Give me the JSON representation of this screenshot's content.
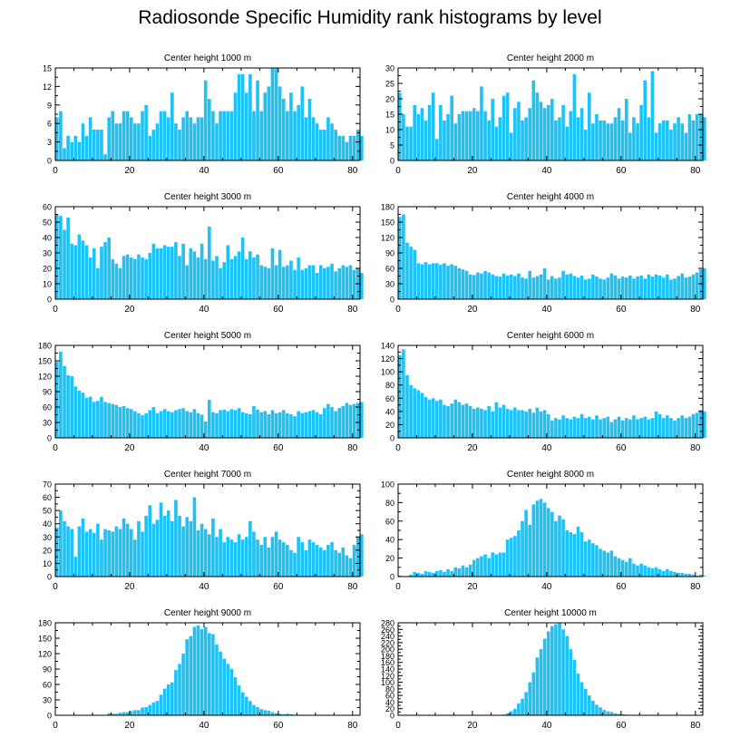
{
  "figure": {
    "title": "Radiosonde Specific Humidity rank histograms by level",
    "bar_color": "#1ec2f5",
    "axis_color": "#000000"
  },
  "chart_data": [
    {
      "type": "bar",
      "title": "Center height 1000 m",
      "xlim": [
        0,
        82
      ],
      "xticks": [
        0,
        20,
        40,
        60,
        80
      ],
      "ylim": [
        0,
        15
      ],
      "yticks": [
        0,
        3,
        6,
        9,
        12,
        15
      ],
      "values": [
        7,
        8,
        2,
        4,
        3,
        4,
        3,
        6,
        4,
        7,
        5,
        5,
        5,
        1,
        7,
        8,
        6,
        6,
        8,
        8,
        7,
        6,
        6,
        8,
        9,
        4,
        5,
        6,
        8,
        8,
        7,
        11,
        6,
        5,
        7,
        8,
        7,
        6,
        7,
        7,
        13,
        10,
        8,
        6,
        8,
        8,
        8,
        8,
        11,
        14,
        14,
        11,
        14,
        8,
        13,
        8,
        11,
        12,
        15,
        15,
        12,
        10,
        8,
        11,
        8,
        9,
        12,
        7,
        10,
        7,
        6,
        5,
        5,
        7,
        6,
        5,
        4,
        4,
        3,
        4,
        4,
        5,
        4
      ]
    },
    {
      "type": "bar",
      "title": "Center height 2000 m",
      "xlim": [
        0,
        82
      ],
      "xticks": [
        0,
        20,
        40,
        60,
        80
      ],
      "ylim": [
        0,
        30
      ],
      "yticks": [
        0,
        5,
        10,
        15,
        20,
        25,
        30
      ],
      "values": [
        22,
        15,
        11,
        11,
        18,
        15,
        17,
        13,
        18,
        22,
        7,
        18,
        13,
        15,
        21,
        12,
        15,
        16,
        16,
        16,
        17,
        16,
        24,
        16,
        13,
        20,
        11,
        14,
        21,
        22,
        9,
        17,
        19,
        13,
        14,
        17,
        26,
        22,
        19,
        17,
        18,
        20,
        13,
        14,
        18,
        11,
        16,
        28,
        14,
        17,
        10,
        22,
        12,
        15,
        13,
        13,
        12,
        12,
        14,
        17,
        13,
        20,
        9,
        14,
        12,
        18,
        26,
        14,
        29,
        9,
        12,
        13,
        13,
        10,
        12,
        14,
        12,
        9,
        15,
        13,
        15,
        15,
        14
      ]
    },
    {
      "type": "bar",
      "title": "Center height 3000 m",
      "xlim": [
        0,
        82
      ],
      "xticks": [
        0,
        20,
        40,
        60,
        80
      ],
      "ylim": [
        0,
        60
      ],
      "yticks": [
        0,
        10,
        20,
        30,
        40,
        50,
        60
      ],
      "values": [
        55,
        54,
        45,
        53,
        36,
        35,
        42,
        38,
        35,
        27,
        33,
        20,
        34,
        37,
        40,
        26,
        23,
        20,
        28,
        29,
        27,
        26,
        29,
        27,
        26,
        30,
        36,
        33,
        33,
        35,
        34,
        34,
        37,
        28,
        36,
        22,
        33,
        31,
        27,
        36,
        26,
        47,
        25,
        28,
        20,
        24,
        35,
        26,
        28,
        31,
        40,
        26,
        31,
        27,
        29,
        22,
        21,
        20,
        33,
        22,
        32,
        21,
        22,
        25,
        19,
        27,
        19,
        20,
        22,
        22,
        17,
        22,
        20,
        21,
        23,
        18,
        20,
        22,
        21,
        22,
        19,
        20,
        17
      ]
    },
    {
      "type": "bar",
      "title": "Center height 4000 m",
      "xlim": [
        0,
        82
      ],
      "xticks": [
        0,
        20,
        40,
        60,
        80
      ],
      "ylim": [
        0,
        180
      ],
      "yticks": [
        0,
        30,
        60,
        90,
        120,
        150,
        180
      ],
      "values": [
        160,
        165,
        110,
        102,
        96,
        70,
        68,
        72,
        68,
        70,
        70,
        67,
        70,
        65,
        68,
        65,
        60,
        58,
        55,
        48,
        47,
        52,
        50,
        55,
        52,
        48,
        45,
        44,
        50,
        46,
        48,
        45,
        50,
        42,
        40,
        55,
        42,
        45,
        48,
        60,
        38,
        45,
        40,
        42,
        55,
        48,
        50,
        45,
        42,
        46,
        38,
        40,
        48,
        44,
        40,
        38,
        42,
        50,
        46,
        40,
        44,
        42,
        46,
        40,
        44,
        46,
        40,
        48,
        44,
        48,
        46,
        42,
        48,
        38,
        40,
        45,
        50,
        42,
        44,
        48,
        52,
        58,
        60
      ]
    },
    {
      "type": "bar",
      "title": "Center height 5000 m",
      "xlim": [
        0,
        82
      ],
      "xticks": [
        0,
        20,
        40,
        60,
        80
      ],
      "ylim": [
        0,
        180
      ],
      "yticks": [
        0,
        30,
        60,
        90,
        120,
        150,
        180
      ],
      "values": [
        148,
        168,
        140,
        122,
        120,
        100,
        92,
        88,
        78,
        80,
        70,
        72,
        80,
        70,
        68,
        66,
        64,
        60,
        62,
        58,
        56,
        52,
        48,
        44,
        48,
        54,
        60,
        48,
        52,
        56,
        52,
        50,
        54,
        56,
        58,
        52,
        50,
        56,
        48,
        45,
        32,
        74,
        50,
        48,
        54,
        55,
        52,
        56,
        54,
        58,
        50,
        48,
        46,
        62,
        55,
        50,
        52,
        46,
        54,
        48,
        50,
        54,
        48,
        46,
        42,
        52,
        48,
        50,
        52,
        54,
        50,
        46,
        58,
        66,
        60,
        52,
        58,
        62,
        68,
        64,
        66,
        68,
        70
      ]
    },
    {
      "type": "bar",
      "title": "Center height 6000 m",
      "xlim": [
        0,
        82
      ],
      "xticks": [
        0,
        20,
        40,
        60,
        80
      ],
      "ylim": [
        0,
        140
      ],
      "yticks": [
        0,
        20,
        40,
        60,
        80,
        100,
        120,
        140
      ],
      "values": [
        125,
        134,
        95,
        80,
        75,
        72,
        68,
        62,
        58,
        60,
        56,
        58,
        50,
        48,
        52,
        58,
        54,
        50,
        52,
        48,
        44,
        46,
        44,
        42,
        48,
        40,
        54,
        46,
        50,
        44,
        42,
        46,
        42,
        42,
        40,
        44,
        38,
        46,
        40,
        42,
        36,
        26,
        30,
        28,
        34,
        30,
        28,
        32,
        30,
        36,
        30,
        32,
        28,
        34,
        28,
        30,
        32,
        24,
        28,
        32,
        26,
        30,
        28,
        34,
        28,
        30,
        32,
        28,
        30,
        40,
        36,
        30,
        34,
        30,
        26,
        30,
        34,
        30,
        32,
        36,
        38,
        42,
        40
      ]
    },
    {
      "type": "bar",
      "title": "Center height 7000 m",
      "xlim": [
        0,
        82
      ],
      "xticks": [
        0,
        20,
        40,
        60,
        80
      ],
      "ylim": [
        0,
        70
      ],
      "yticks": [
        0,
        10,
        20,
        30,
        40,
        50,
        60,
        70
      ],
      "values": [
        37,
        50,
        42,
        38,
        36,
        15,
        38,
        44,
        34,
        36,
        33,
        40,
        28,
        36,
        35,
        34,
        38,
        36,
        44,
        40,
        36,
        28,
        42,
        34,
        46,
        54,
        40,
        43,
        56,
        46,
        50,
        42,
        58,
        46,
        38,
        45,
        42,
        60,
        35,
        40,
        36,
        32,
        44,
        30,
        36,
        26,
        30,
        28,
        26,
        32,
        28,
        30,
        42,
        34,
        28,
        24,
        30,
        22,
        30,
        34,
        28,
        26,
        24,
        20,
        18,
        30,
        26,
        20,
        28,
        26,
        24,
        22,
        20,
        24,
        26,
        20,
        18,
        22,
        16,
        14,
        24,
        30,
        32
      ]
    },
    {
      "type": "bar",
      "title": "Center height 8000 m",
      "xlim": [
        0,
        82
      ],
      "xticks": [
        0,
        20,
        40,
        60,
        80
      ],
      "ylim": [
        0,
        100
      ],
      "yticks": [
        0,
        20,
        40,
        60,
        80,
        100
      ],
      "values": [
        1,
        0,
        0,
        2,
        5,
        4,
        3,
        6,
        5,
        4,
        6,
        7,
        5,
        8,
        6,
        10,
        9,
        12,
        10,
        13,
        18,
        20,
        22,
        24,
        20,
        26,
        24,
        26,
        26,
        40,
        42,
        44,
        50,
        60,
        72,
        56,
        78,
        82,
        84,
        80,
        74,
        70,
        60,
        66,
        62,
        50,
        48,
        46,
        54,
        48,
        38,
        40,
        36,
        34,
        30,
        28,
        26,
        28,
        22,
        20,
        18,
        16,
        20,
        14,
        12,
        14,
        12,
        10,
        9,
        10,
        8,
        6,
        8,
        6,
        5,
        4,
        4,
        3,
        3,
        2,
        1,
        2,
        1
      ]
    },
    {
      "type": "bar",
      "title": "Center height 9000 m",
      "xlim": [
        0,
        82
      ],
      "xticks": [
        0,
        20,
        40,
        60,
        80
      ],
      "ylim": [
        0,
        180
      ],
      "yticks": [
        0,
        30,
        60,
        90,
        120,
        150,
        180
      ],
      "values": [
        0,
        0,
        0,
        0,
        0,
        0,
        0,
        0,
        0,
        0,
        0,
        0,
        0,
        0,
        4,
        3,
        3,
        5,
        6,
        6,
        8,
        10,
        10,
        15,
        16,
        20,
        25,
        28,
        40,
        52,
        60,
        64,
        88,
        100,
        120,
        148,
        154,
        172,
        175,
        168,
        172,
        160,
        158,
        138,
        124,
        110,
        100,
        90,
        74,
        58,
        45,
        36,
        28,
        20,
        16,
        12,
        10,
        9,
        6,
        4,
        3,
        2,
        3,
        2,
        1,
        1,
        1,
        1,
        1,
        0,
        1,
        0,
        1,
        0,
        0,
        0,
        0,
        0,
        0,
        0,
        0,
        0,
        0
      ]
    },
    {
      "type": "bar",
      "title": "Center height 10000 m",
      "xlim": [
        0,
        82
      ],
      "xticks": [
        0,
        20,
        40,
        60,
        80
      ],
      "ylim": [
        0,
        280
      ],
      "yticks": [
        0,
        20,
        40,
        60,
        80,
        100,
        120,
        140,
        160,
        180,
        200,
        220,
        240,
        260,
        280
      ],
      "values": [
        0,
        0,
        0,
        0,
        0,
        0,
        0,
        0,
        0,
        0,
        0,
        0,
        0,
        0,
        0,
        0,
        0,
        0,
        0,
        0,
        0,
        0,
        0,
        0,
        0,
        0,
        0,
        0,
        2,
        6,
        12,
        20,
        36,
        50,
        70,
        100,
        130,
        175,
        200,
        232,
        254,
        270,
        276,
        280,
        260,
        240,
        200,
        168,
        126,
        100,
        80,
        60,
        44,
        32,
        24,
        16,
        12,
        10,
        6,
        4,
        3,
        2,
        1,
        1,
        1,
        1,
        0,
        0,
        0,
        0,
        0,
        0,
        0,
        0,
        0,
        0,
        0,
        0,
        0,
        0,
        0,
        0,
        0
      ]
    }
  ]
}
